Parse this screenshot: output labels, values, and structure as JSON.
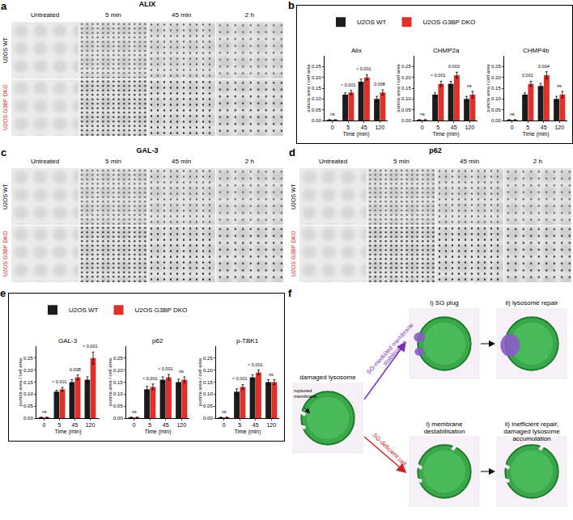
{
  "micrographs": [
    {
      "label": "a",
      "title": "ALIX",
      "columns": [
        "Untreated",
        "5 min",
        "45 min",
        "2 h"
      ],
      "rows": [
        "U2OS WT",
        "U2OS G3BP DKO"
      ],
      "row_colors": [
        "#000000",
        "#e0302a"
      ]
    },
    {
      "label": "c",
      "title": "GAL-3",
      "columns": [
        "Untreated",
        "5 min",
        "45 min",
        "2 h"
      ],
      "rows": [
        "U2OS WT",
        "U2OS G3BP DKO"
      ],
      "row_colors": [
        "#000000",
        "#e0302a"
      ]
    },
    {
      "label": "d",
      "title": "p62",
      "columns": [
        "Untreated",
        "5 min",
        "45 min",
        "2 h"
      ],
      "rows": [
        "U2OS WT",
        "U2OS G3BP DKO"
      ],
      "row_colors": [
        "#000000",
        "#e0302a"
      ]
    }
  ],
  "chart_panel_labels": [
    "b",
    "e"
  ],
  "chart_data": [
    {
      "type": "bar",
      "title": "Alix",
      "categories": [
        "0",
        "5",
        "45",
        "120"
      ],
      "x_label": "Time (min)",
      "y_label": "puncta area / cell area",
      "ylim": [
        0,
        0.3
      ],
      "yticks": [
        {
          "value": 0,
          "label": "0.00"
        },
        0.05,
        {
          "value": 0.1,
          "label": "0.10"
        },
        0.15,
        {
          "value": 0.2,
          "label": "0.20"
        },
        0.25
      ],
      "legend": "top",
      "series": [
        {
          "name": "U2OS WT",
          "color": "#1c1c1c",
          "values": [
            0.003,
            0.12,
            0.18,
            0.1
          ],
          "errors": [
            0.001,
            0.008,
            0.012,
            0.012
          ]
        },
        {
          "name": "U2OS G3BP DKO",
          "color": "#e0302a",
          "values": [
            0.003,
            0.13,
            0.2,
            0.13
          ],
          "errors": [
            0.001,
            0.01,
            0.012,
            0.012
          ]
        }
      ],
      "annotations": [
        {
          "text": "ns",
          "category": "0"
        },
        {
          "text": "< 0.001",
          "category": "5"
        },
        {
          "text": "< 0.001",
          "category": "45"
        },
        {
          "text": "0.008",
          "category": "120"
        }
      ]
    },
    {
      "type": "bar",
      "title": "CHMP2a",
      "categories": [
        "0",
        "5",
        "45",
        "120"
      ],
      "x_label": "Time (min)",
      "y_label": "puncta area / cell area",
      "ylim": [
        0,
        0.3
      ],
      "yticks": [
        {
          "value": 0,
          "label": "0.00"
        },
        0.05,
        {
          "value": 0.1,
          "label": "0.10"
        },
        0.15,
        {
          "value": 0.2,
          "label": "0.20"
        },
        0.25
      ],
      "legend": "top",
      "series": [
        {
          "name": "U2OS WT",
          "color": "#1c1c1c",
          "values": [
            0.003,
            0.12,
            0.17,
            0.1
          ],
          "errors": [
            0.001,
            0.008,
            0.012,
            0.012
          ]
        },
        {
          "name": "U2OS G3BP DKO",
          "color": "#e0302a",
          "values": [
            0.003,
            0.17,
            0.21,
            0.12
          ],
          "errors": [
            0.001,
            0.012,
            0.014,
            0.015
          ]
        }
      ],
      "annotations": [
        {
          "text": "ns",
          "category": "0"
        },
        {
          "text": "< 0.001",
          "category": "5"
        },
        {
          "text": "0.003",
          "category": "45"
        },
        {
          "text": "ns",
          "category": "120"
        }
      ]
    },
    {
      "type": "bar",
      "title": "CHMP4b",
      "categories": [
        "0",
        "5",
        "45",
        "120"
      ],
      "x_label": "Time (min)",
      "y_label": "puncta area / cell area",
      "ylim": [
        0,
        0.3
      ],
      "yticks": [
        {
          "value": 0,
          "label": "0.00"
        },
        0.05,
        {
          "value": 0.1,
          "label": "0.10"
        },
        0.15,
        {
          "value": 0.2,
          "label": "0.20"
        },
        0.25
      ],
      "legend": "top",
      "series": [
        {
          "name": "U2OS WT",
          "color": "#1c1c1c",
          "values": [
            0.003,
            0.12,
            0.16,
            0.1
          ],
          "errors": [
            0.001,
            0.008,
            0.012,
            0.012
          ]
        },
        {
          "name": "U2OS G3BP DKO",
          "color": "#e0302a",
          "values": [
            0.003,
            0.17,
            0.21,
            0.12
          ],
          "errors": [
            0.001,
            0.012,
            0.016,
            0.015
          ]
        }
      ],
      "annotations": [
        {
          "text": "ns",
          "category": "0"
        },
        {
          "text": "0.001",
          "category": "5"
        },
        {
          "text": "0.004",
          "category": "45"
        },
        {
          "text": "ns",
          "category": "120"
        }
      ]
    },
    {
      "type": "bar",
      "title": "GAL-3",
      "categories": [
        "0",
        "5",
        "45",
        "120"
      ],
      "x_label": "Time (min)",
      "y_label": "puncta area / cell area",
      "ylim": [
        0,
        0.3
      ],
      "yticks": [
        {
          "value": 0,
          "label": "0.00"
        },
        0.05,
        {
          "value": 0.1,
          "label": "0.10"
        },
        0.15,
        {
          "value": 0.2,
          "label": "0.20"
        },
        0.25
      ],
      "legend": "top",
      "series": [
        {
          "name": "U2OS WT",
          "color": "#1c1c1c",
          "values": [
            0.003,
            0.11,
            0.15,
            0.16
          ],
          "errors": [
            0.001,
            0.006,
            0.01,
            0.012
          ]
        },
        {
          "name": "U2OS G3BP DKO",
          "color": "#e0302a",
          "values": [
            0.003,
            0.12,
            0.17,
            0.25
          ],
          "errors": [
            0.001,
            0.008,
            0.01,
            0.025
          ]
        }
      ],
      "annotations": [
        {
          "text": "ns",
          "category": "0"
        },
        {
          "text": "< 0.001",
          "category": "5"
        },
        {
          "text": "0.008",
          "category": "45"
        },
        {
          "text": "< 0.001",
          "category": "120"
        }
      ]
    },
    {
      "type": "bar",
      "title": "p62",
      "categories": [
        "0",
        "5",
        "45",
        "120"
      ],
      "x_label": "Time (min)",
      "y_label": "puncta area / cell area",
      "ylim": [
        0,
        0.3
      ],
      "yticks": [
        {
          "value": 0,
          "label": "0.00"
        },
        0.05,
        {
          "value": 0.1,
          "label": "0.10"
        },
        0.15,
        {
          "value": 0.2,
          "label": "0.20"
        },
        0.25
      ],
      "legend": "top",
      "series": [
        {
          "name": "U2OS WT",
          "color": "#1c1c1c",
          "values": [
            0.003,
            0.12,
            0.16,
            0.15
          ],
          "errors": [
            0.001,
            0.012,
            0.012,
            0.012
          ]
        },
        {
          "name": "U2OS G3BP DKO",
          "color": "#e0302a",
          "values": [
            0.003,
            0.13,
            0.17,
            0.16
          ],
          "errors": [
            0.001,
            0.012,
            0.012,
            0.012
          ]
        }
      ],
      "annotations": [
        {
          "text": "ns",
          "category": "0"
        },
        {
          "text": "< 0.001",
          "category": "5"
        },
        {
          "text": "< 0.001",
          "category": "45"
        },
        {
          "text": "ns",
          "category": "120"
        }
      ]
    },
    {
      "type": "bar",
      "title": "p-TBK1",
      "categories": [
        "0",
        "5",
        "45",
        "120"
      ],
      "x_label": "Time (min)",
      "y_label": "puncta area / cell area",
      "ylim": [
        0,
        0.3
      ],
      "yticks": [
        {
          "value": 0,
          "label": "0.00"
        },
        0.05,
        {
          "value": 0.1,
          "label": "0.10"
        },
        0.15,
        {
          "value": 0.2,
          "label": "0.20"
        },
        0.25
      ],
      "legend": "top",
      "series": [
        {
          "name": "U2OS WT",
          "color": "#1c1c1c",
          "values": [
            0.003,
            0.11,
            0.17,
            0.15
          ],
          "errors": [
            0.001,
            0.012,
            0.01,
            0.01
          ]
        },
        {
          "name": "U2OS G3BP DKO",
          "color": "#e0302a",
          "values": [
            0.003,
            0.13,
            0.19,
            0.15
          ],
          "errors": [
            0.001,
            0.01,
            0.01,
            0.01
          ]
        }
      ],
      "annotations": [
        {
          "text": "ns",
          "category": "0"
        },
        {
          "text": "< 0.001",
          "category": "5"
        },
        {
          "text": "< 0.001",
          "category": "45"
        },
        {
          "text": "ns",
          "category": "120"
        }
      ]
    }
  ],
  "diagram_f": {
    "label": "f",
    "start": "damaged lysosome",
    "rupture": "ruptured membrane",
    "upper_branch": "SG-mediated membrane stabilisation",
    "upper_color": "#7b2fb8",
    "lower_branch": "SG-deficient cell",
    "lower_color": "#d42020",
    "upper_steps": [
      "i) SG plug",
      "ii) lysosome repair"
    ],
    "lower_steps": [
      "i) membrane destabilisation",
      "ii) inefficient repair, damaged lysosome accumulation"
    ]
  }
}
